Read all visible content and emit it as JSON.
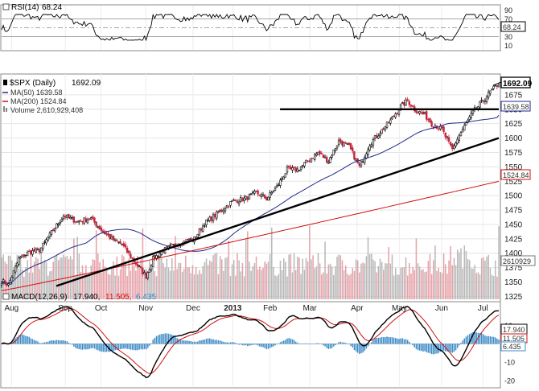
{
  "chart_data": {
    "type": "candlestick",
    "title": "$SPX (Daily) 1692.09",
    "colors": {
      "up": "#000000",
      "down": "#c0283c",
      "ma50": "#1f2a8a",
      "ma200": "#d01010",
      "rsi": "#000000",
      "macd": "#000000",
      "signal": "#d01010",
      "hist": "#3c8cc8",
      "vol_up": "#b8b8b8",
      "vol_down": "#e6a0a8",
      "trend": "#000000"
    },
    "x_labels": [
      "Aug",
      "Sep",
      "Oct",
      "Nov",
      "Dec",
      "2013",
      "Feb",
      "Mar",
      "Apr",
      "May",
      "Jun",
      "Jul"
    ],
    "x_label_fracs": [
      0.02,
      0.128,
      0.2,
      0.29,
      0.385,
      0.465,
      0.54,
      0.62,
      0.715,
      0.8,
      0.885,
      0.968
    ],
    "price": {
      "ylim": [
        1320,
        1700
      ],
      "yticks": [
        1325,
        1350,
        1375,
        1400,
        1425,
        1450,
        1475,
        1500,
        1525,
        1550,
        1575,
        1600,
        1625,
        1650,
        1675
      ],
      "current": 1692.09,
      "ma50_value": 1639.58,
      "ma200_value": 1524.84,
      "volume_value": 2610929408,
      "volume_tag": "2610929",
      "anchors": [
        [
          0,
          1352
        ],
        [
          4,
          1345
        ],
        [
          10,
          1390
        ],
        [
          16,
          1402
        ],
        [
          22,
          1405
        ],
        [
          30,
          1440
        ],
        [
          36,
          1465
        ],
        [
          44,
          1455
        ],
        [
          52,
          1460
        ],
        [
          58,
          1440
        ],
        [
          64,
          1425
        ],
        [
          70,
          1415
        ],
        [
          76,
          1390
        ],
        [
          80,
          1375
        ],
        [
          84,
          1360
        ],
        [
          88,
          1390
        ],
        [
          94,
          1405
        ],
        [
          100,
          1413
        ],
        [
          106,
          1420
        ],
        [
          112,
          1425
        ],
        [
          118,
          1452
        ],
        [
          126,
          1470
        ],
        [
          134,
          1490
        ],
        [
          142,
          1495
        ],
        [
          148,
          1505
        ],
        [
          154,
          1495
        ],
        [
          160,
          1515
        ],
        [
          166,
          1545
        ],
        [
          172,
          1545
        ],
        [
          178,
          1560
        ],
        [
          184,
          1575
        ],
        [
          190,
          1560
        ],
        [
          196,
          1595
        ],
        [
          202,
          1585
        ],
        [
          208,
          1550
        ],
        [
          214,
          1590
        ],
        [
          220,
          1610
        ],
        [
          226,
          1630
        ],
        [
          232,
          1655
        ],
        [
          236,
          1665
        ],
        [
          240,
          1650
        ],
        [
          246,
          1640
        ],
        [
          250,
          1625
        ],
        [
          256,
          1615
        ],
        [
          260,
          1590
        ],
        [
          262,
          1580
        ],
        [
          266,
          1605
        ],
        [
          270,
          1625
        ],
        [
          274,
          1645
        ],
        [
          280,
          1665
        ],
        [
          284,
          1680
        ],
        [
          288,
          1692
        ]
      ],
      "horizontal_line": 1650,
      "trendlines": [
        {
          "from": [
            0.11,
            1343
          ],
          "to": [
            1.0,
            1600
          ]
        },
        {
          "from": [
            0.56,
            1650
          ],
          "to": [
            1.0,
            1650
          ]
        }
      ]
    },
    "volume": {
      "ylim": [
        0,
        5000000000
      ]
    },
    "rsi": {
      "label": "RSI(14)",
      "value": 68.24,
      "ylim": [
        0,
        100
      ],
      "levels": [
        70,
        50,
        30
      ],
      "yticks": [
        90,
        70,
        50,
        30,
        10
      ]
    },
    "macd": {
      "label": "MACD(12,26,9)",
      "macd": 17.94,
      "signal": 11.505,
      "hist": 6.435,
      "ylim": [
        -23,
        22
      ],
      "yticks": [
        10,
        0,
        -10,
        -20
      ]
    }
  },
  "legend": {
    "rsi_label": "RSI(14)",
    "rsi_value": "68.24",
    "title": "$SPX (Daily)",
    "title_value": "1692.09",
    "ma50": "MA(50) 1639.58",
    "ma200": "MA(200) 1524.84",
    "volume": "Volume 2,610,929,408",
    "macd_label": "MACD(12,26,9)",
    "macd_value": "17.940,",
    "signal_value": "11.505,",
    "hist_value": "6.435",
    "tag_price": "1692.09",
    "tag_ma50": "1639.58",
    "tag_ma200": "1524.84",
    "tag_volume": "2610929",
    "tag_rsi": "68.24",
    "tag_macd": "17.940",
    "tag_signal": "11.505",
    "tag_hist": "6.435"
  }
}
